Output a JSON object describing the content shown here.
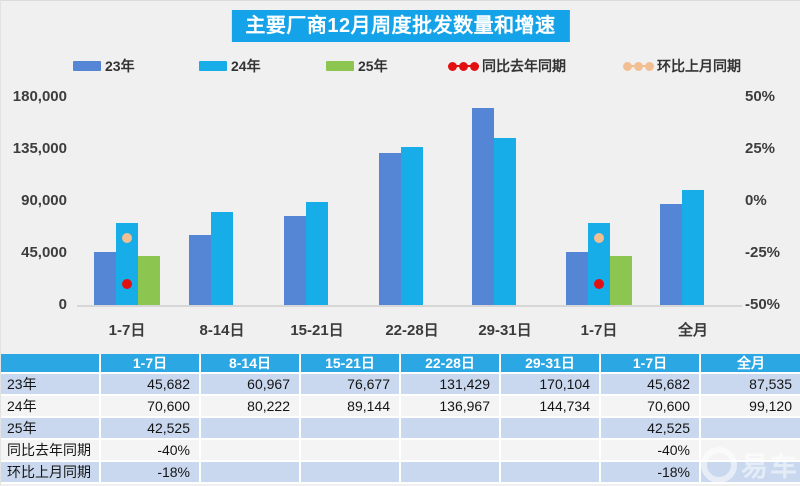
{
  "title": "主要厂商12月周度批发数量和增速",
  "legend": [
    {
      "label": "23年",
      "type": "swatch",
      "color": "#5585d5"
    },
    {
      "label": "24年",
      "type": "swatch",
      "color": "#16ade9"
    },
    {
      "label": "25年",
      "type": "swatch",
      "color": "#8cc651"
    },
    {
      "label": "同比去年同期",
      "type": "dots",
      "color": "#e31012"
    },
    {
      "label": "环比上月同期",
      "type": "dots",
      "color": "#f2bf92"
    }
  ],
  "chart_data": {
    "type": "bar",
    "title": "主要厂商12月周度批发数量和增速",
    "categories": [
      "1-7日",
      "8-14日",
      "15-21日",
      "22-28日",
      "29-31日",
      "1-7日",
      "全月"
    ],
    "series": [
      {
        "name": "23年",
        "kind": "bar",
        "color": "#5585d5",
        "values": [
          45682,
          60967,
          76677,
          131429,
          170104,
          45682,
          87535
        ]
      },
      {
        "name": "24年",
        "kind": "bar",
        "color": "#16ade9",
        "values": [
          70600,
          80222,
          89144,
          136967,
          144734,
          70600,
          99120
        ]
      },
      {
        "name": "25年",
        "kind": "bar",
        "color": "#8cc651",
        "values": [
          42525,
          null,
          null,
          null,
          null,
          42525,
          null
        ]
      },
      {
        "name": "同比去年同期",
        "kind": "point",
        "axis": "right",
        "color": "#e31012",
        "values": [
          -40,
          null,
          null,
          null,
          null,
          -40,
          null
        ]
      },
      {
        "name": "环比上月同期",
        "kind": "point",
        "axis": "right",
        "color": "#f2bf92",
        "values": [
          -18,
          null,
          null,
          null,
          null,
          -18,
          null
        ]
      }
    ],
    "left_axis": {
      "ticks": [
        "180,000",
        "135,000",
        "90,000",
        "45,000",
        "0"
      ],
      "min": 0,
      "max": 180000
    },
    "right_axis": {
      "ticks": [
        "50%",
        "25%",
        "0%",
        "-25%",
        "-50%"
      ],
      "min": -50,
      "max": 50
    },
    "grid": false,
    "legend_position": "top"
  },
  "table": {
    "header": [
      "",
      "1-7日",
      "8-14日",
      "15-21日",
      "22-28日",
      "29-31日",
      "1-7日",
      "全月"
    ],
    "rows": [
      {
        "label": "23年",
        "cells": [
          "45,682",
          "60,967",
          "76,677",
          "131,429",
          "170,104",
          "45,682",
          "87,535"
        ]
      },
      {
        "label": "24年",
        "cells": [
          "70,600",
          "80,222",
          "89,144",
          "136,967",
          "144,734",
          "70,600",
          "99,120"
        ]
      },
      {
        "label": "25年",
        "cells": [
          "42,525",
          "",
          "",
          "",
          "",
          "42,525",
          ""
        ]
      },
      {
        "label": "同比去年同期",
        "cells": [
          "-40%",
          "",
          "",
          "",
          "",
          "-40%",
          ""
        ]
      },
      {
        "label": "环比上月同期",
        "cells": [
          "-18%",
          "",
          "",
          "",
          "",
          "-18%",
          ""
        ]
      }
    ]
  },
  "watermark": "易车",
  "colors": {
    "title_bg": "#14a3e8",
    "table_header_bg": "#2ba7e3",
    "row_alt_bg": "#c9d8ee",
    "row_lite_bg": "#f4f4f4",
    "background": "#f1f0f0"
  }
}
